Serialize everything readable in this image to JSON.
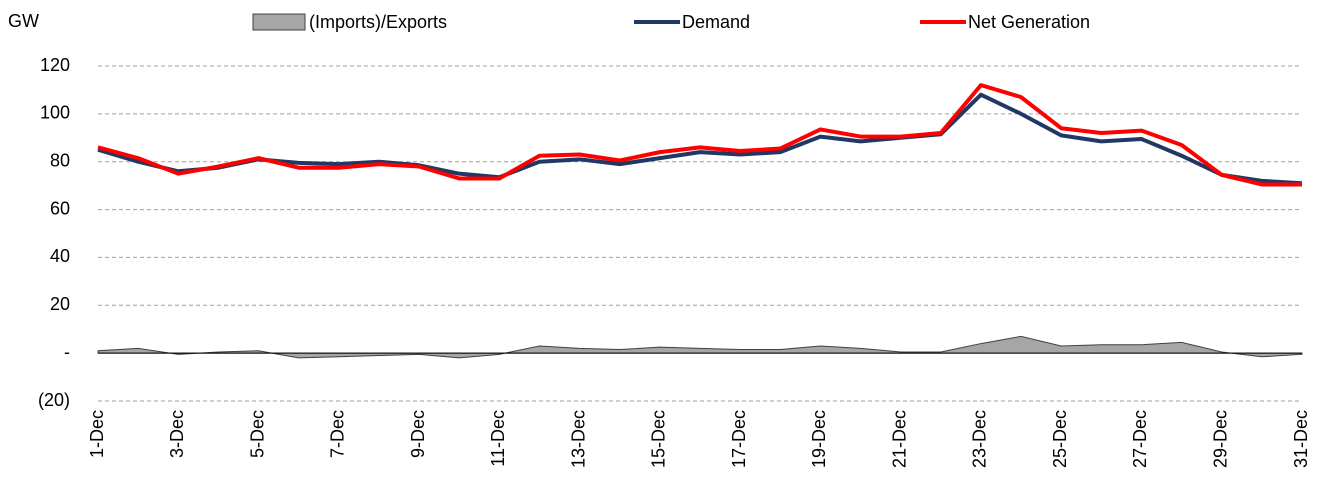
{
  "chart_data": {
    "type": "line",
    "y_label": "GW",
    "categories": [
      "1-Dec",
      null,
      "3-Dec",
      null,
      "5-Dec",
      null,
      "7-Dec",
      null,
      "9-Dec",
      null,
      "11-Dec",
      null,
      "13-Dec",
      null,
      "15-Dec",
      null,
      "17-Dec",
      null,
      "19-Dec",
      null,
      "21-Dec",
      null,
      "23-Dec",
      null,
      "25-Dec",
      null,
      "27-Dec",
      null,
      "29-Dec",
      null,
      "31-Dec"
    ],
    "series": [
      {
        "name": "(Imports)/Exports",
        "type": "area",
        "color": "#a6a6a6",
        "values": [
          1,
          2,
          -0.5,
          0.5,
          1,
          -2,
          -1.5,
          -1,
          -0.5,
          -2,
          -0.5,
          3,
          2,
          1.5,
          2.5,
          2,
          1.5,
          1.5,
          3,
          2,
          0.5,
          0.5,
          4,
          7,
          3,
          3.5,
          3.5,
          4.5,
          0.5,
          -1.5,
          -0.5
        ]
      },
      {
        "name": "Demand",
        "type": "line",
        "color": "#1f3864",
        "values": [
          85,
          80,
          76,
          77.5,
          81,
          79.5,
          79,
          80,
          78.5,
          75,
          73.5,
          80,
          81,
          79,
          81.5,
          84,
          83,
          84,
          90.5,
          88.5,
          90,
          91.5,
          108,
          100,
          91,
          88.5,
          89.5,
          82.5,
          74.5,
          72,
          71
        ]
      },
      {
        "name": "Net Generation",
        "type": "line",
        "color": "#ff0000",
        "values": [
          86,
          81.5,
          75,
          78,
          81.5,
          77.5,
          77.5,
          79,
          78,
          73,
          73,
          82.5,
          83,
          80.5,
          84,
          86,
          84.5,
          85.5,
          93.5,
          90.5,
          90.5,
          92,
          112,
          107,
          94,
          92,
          93,
          87,
          74.5,
          70.5,
          70.5
        ]
      }
    ],
    "ylim": [
      -20,
      120
    ],
    "yticks": [
      {
        "value": -20,
        "label": "(20)"
      },
      {
        "value": 0,
        "label": "-"
      },
      20,
      40,
      60,
      80,
      100,
      120
    ],
    "grid": true
  }
}
